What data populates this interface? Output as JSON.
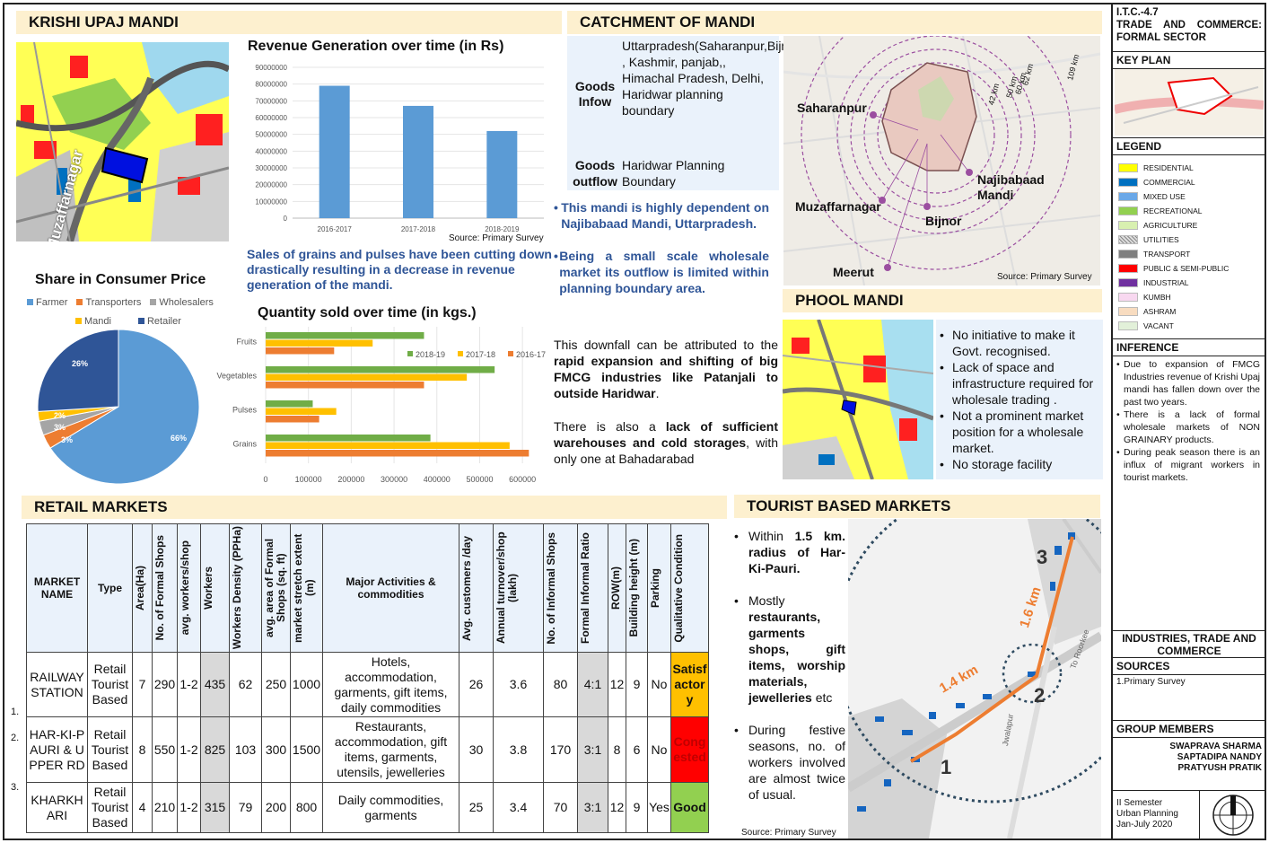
{
  "krishi": {
    "title": "KRISHI UPAJ MANDI",
    "map_label": "Muzaffarnagar"
  },
  "revenue": {
    "title": "Revenue Generation over time (in Rs)",
    "source": "Source: Primary Survey",
    "caption": "Sales of grains and pulses have been cutting down drastically resulting in a decrease in revenue generation of the mandi."
  },
  "share": {
    "title": "Share in Consumer Price"
  },
  "quantity": {
    "title": "Quantity sold over time (in kgs.)"
  },
  "chart_data": [
    {
      "type": "bar",
      "title": "Revenue Generation over time (in Rs)",
      "categories": [
        "2016-2017",
        "2017-2018",
        "2018-2019"
      ],
      "values": [
        79000000,
        67000000,
        52000000
      ],
      "ylim": [
        0,
        90000000
      ],
      "yticks": [
        "90000000",
        "80000000",
        "70000000",
        "60000000",
        "50000000",
        "40000000",
        "30000000",
        "20000000",
        "10000000",
        "0"
      ],
      "color": "#5b9bd5"
    },
    {
      "type": "pie",
      "title": "Share in Consumer Price",
      "labels": [
        "Farmer",
        "Transporters",
        "Wholesalers",
        "Mandi",
        "Retailer"
      ],
      "values": [
        66,
        3,
        3,
        2,
        26
      ],
      "value_labels": [
        "66%",
        "3%",
        "3%",
        "2%",
        "26%"
      ],
      "colors": [
        "#5b9bd5",
        "#ed7d31",
        "#a5a5a5",
        "#ffc000",
        "#2f5597"
      ]
    },
    {
      "type": "bar",
      "orientation": "horizontal",
      "title": "Quantity sold over time (in kgs.)",
      "categories": [
        "Fruits",
        "Vegetables",
        "Pulses",
        "Grains"
      ],
      "series": [
        {
          "name": "2018-19",
          "color": "#70ad47",
          "values": [
            370000,
            535000,
            110000,
            385000
          ]
        },
        {
          "name": "2017-18",
          "color": "#ffc000",
          "values": [
            250000,
            470000,
            165000,
            570000
          ]
        },
        {
          "name": "2016-17",
          "color": "#ed7d31",
          "values": [
            160000,
            370000,
            125000,
            615000
          ]
        }
      ],
      "xlim": [
        0,
        650000
      ],
      "xticks": [
        "0",
        "100000",
        "200000",
        "300000",
        "400000",
        "500000",
        "600000"
      ],
      "legend": "top-right"
    }
  ],
  "catchment": {
    "title": "CATCHMENT OF MANDI",
    "inflow_label": "Goods Infow",
    "inflow_text": "Uttarpradesh(Saharanpur,Bijnor,Nazibabaad,Mirat,Mujaffarnagar) , Kashmir, panjab,, Himachal Pradesh, Delhi, Haridwar planning boundary",
    "outflow_label": "Goods outflow",
    "outflow_text": "Haridwar Planning Boundary",
    "bullet1": "This mandi is highly dependent on Najibabaad Mandi, Uttarpradesh.",
    "bullet2": "Being a small scale wholesale market its outflow is limited within planning boundary area.",
    "para1_a": "This downfall can be attributed to the ",
    "para1_b": "rapid expansion and shifting of big FMCG industries like Patanjali to outside Haridwar",
    "para1_c": ".",
    "para2_a": "There is also a ",
    "para2_b": "lack of sufficient warehouses and cold storages",
    "para2_c": ", with only one at Bahadarabad",
    "map": {
      "saharanpur": "Saharanpur",
      "najibabaad": "Najibabaad Mandi",
      "muzaffarnagar": "Muzaffarnagar",
      "bijnor": "Bijnor",
      "meerut": "Meerut",
      "r1": "42 km",
      "r2": "50 km",
      "r3": "60 km",
      "r4": "62 km",
      "r5": "109 km",
      "source": "Source: Primary Survey"
    }
  },
  "phool": {
    "title": "PHOOL MANDI",
    "points": [
      "No initiative to make it Govt. recognised.",
      "Lack of space and infrastructure required for wholesale trading .",
      "Not a prominent market position for a wholesale market.",
      "No storage facility"
    ]
  },
  "retail": {
    "title": "RETAIL MARKETS",
    "headers": [
      "MARKET NAME",
      "Type",
      "Area(Ha)",
      "No. of Formal Shops",
      "avg. workers/shop",
      "Workers",
      "Workers Density (PPHa)",
      "avg. area of Formal Shops (sq. ft)",
      "market stretch extent (m)",
      "Major Activities & commodities",
      "Avg. customers /day",
      "Annual turnover/shop (lakh)",
      "No. of Informal Shops",
      "Formal Informal Ratio",
      "ROW(m)",
      "Building height (m)",
      "Parking",
      "Qualitative Condition"
    ],
    "rows": [
      {
        "num": "1.",
        "cells": [
          "RAILWAY STATION",
          "Retail Tourist Based",
          "7",
          "290",
          "1-2",
          "435",
          "62",
          "250",
          "1000",
          "Hotels, accommodation, garments, gift items, daily commodities",
          "26",
          "3.6",
          "80",
          "4:1",
          "12",
          "9",
          "No",
          "Satisfactory"
        ],
        "cond_color": "#ffc000"
      },
      {
        "num": "2.",
        "cells": [
          "HAR-KI-PAURI & UPPER RD",
          "Retail Tourist Based",
          "8",
          "550",
          "1-2",
          "825",
          "103",
          "300",
          "1500",
          "Restaurants, accommodation, gift items, garments, utensils, jewelleries",
          "30",
          "3.8",
          "170",
          "3:1",
          "8",
          "6",
          "No",
          "Congested"
        ],
        "cond_color": "#ff0000"
      },
      {
        "num": "3.",
        "cells": [
          "KHARKHARI",
          "Retail Tourist Based",
          "4",
          "210",
          "1-2",
          "315",
          "79",
          "200",
          "800",
          "Daily commodities, garments",
          "25",
          "3.4",
          "70",
          "3:1",
          "12",
          "9",
          "Yes",
          "Good"
        ],
        "cond_color": "#92d050"
      }
    ]
  },
  "tourist": {
    "title": "TOURIST BASED MARKETS",
    "b1_a": "Within ",
    "b1_b": "1.5 km. radius of Har-Ki-Pauri.",
    "b2_a": "Mostly ",
    "b2_b": "restaurants, garments shops, gift items, worship materials, jewelleries",
    "b2_c": " etc",
    "b3": "During festive seasons, no. of workers involved are almost twice of usual.",
    "source": "Source: Primary Survey",
    "map": {
      "d1": "1.4 km",
      "d2": "1.6 km",
      "n1": "1",
      "n2": "2",
      "n3": "3",
      "road1": "To Roorkee",
      "road2": "Jwalapur"
    }
  },
  "sidebar": {
    "code": "I.T.C.-4.7",
    "subject": "TRADE AND COMMERCE: FORMAL SECTOR",
    "keyplan": "KEY PLAN",
    "legend_title": "LEGEND",
    "legend": [
      {
        "label": "RESIDENTIAL",
        "color": "#ffff00"
      },
      {
        "label": "COMMERCIAL",
        "color": "#0070c0"
      },
      {
        "label": "MIXED USE",
        "color": "#6aa8e8"
      },
      {
        "label": "RECREATIONAL",
        "color": "#92d050"
      },
      {
        "label": "AGRICULTURE",
        "color": "#d8f0b0"
      },
      {
        "label": "UTILITIES",
        "color": "#bfbfbf"
      },
      {
        "label": "TRANSPORT",
        "color": "#7f7f7f"
      },
      {
        "label": "PUBLIC & SEMI-PUBLIC",
        "color": "#ff0000"
      },
      {
        "label": "INDUSTRIAL",
        "color": "#7030a0"
      },
      {
        "label": "KUMBH",
        "color": "#f8d8f0"
      },
      {
        "label": "ASHRAM",
        "color": "#f8dcc0"
      },
      {
        "label": "VACANT",
        "color": "#e2f0d9"
      }
    ],
    "inference_title": "INFERENCE",
    "inference": [
      "Due to expansion of FMCG Industries revenue of Krishi Upaj mandi has fallen down over the past two years.",
      "There is a lack of formal wholesale markets of NON GRAINARY products.",
      "During peak season there is an influx of migrant workers in tourist markets."
    ],
    "section": "INDUSTRIES, TRADE AND COMMERCE",
    "sources_title": "SOURCES",
    "sources": "1.Primary Survey",
    "group_title": "GROUP MEMBERS",
    "members": [
      "SWAPRAVA SHARMA",
      "SAPTADIPA NANDY",
      "PRATYUSH PRATIK"
    ],
    "sem1": "II Semester",
    "sem2": "Urban Planning",
    "sem3": "Jan-July 2020"
  }
}
